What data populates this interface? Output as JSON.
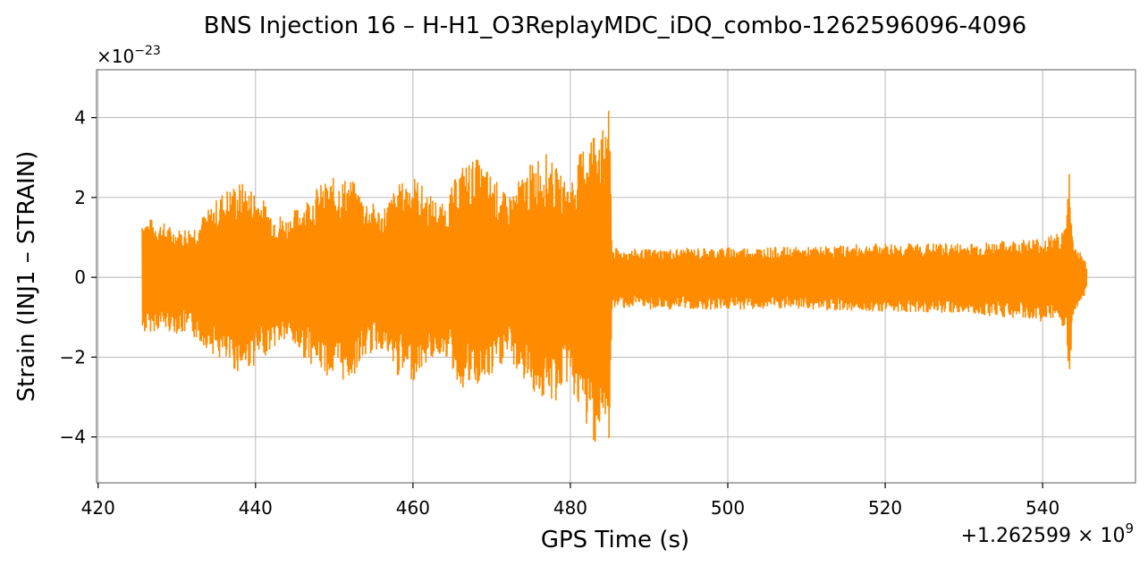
{
  "chart_data": {
    "type": "line",
    "title": "BNS Injection 16 – H-H1_O3ReplayMDC_iDQ_combo-1262596096-4096",
    "xlabel": "GPS Time (s)",
    "ylabel": "Strain (INJ1 – STRAIN)",
    "x_offset_label": "+1.262599 × 10",
    "x_offset_exp": "9",
    "y_scale_label": "×10",
    "y_scale_exp": "−23",
    "xlim": [
      419.8,
      551.8
    ],
    "ylim": [
      -5.15,
      5.2
    ],
    "xticks": [
      420,
      440,
      460,
      480,
      500,
      520,
      540
    ],
    "xtick_labels": [
      "420",
      "440",
      "460",
      "480",
      "500",
      "520",
      "540"
    ],
    "yticks": [
      -4,
      -2,
      0,
      2,
      4
    ],
    "ytick_labels": [
      "−4",
      "−2",
      "0",
      "2",
      "4"
    ],
    "grid": true,
    "line_color": "#ff8c00",
    "series": [
      {
        "envelope_x": [
          425.6,
          426.0,
          428.0,
          430.0,
          432.0,
          434.0,
          436.0,
          438.0,
          440.0,
          442.0,
          444.0,
          446.0,
          448.0,
          450.0,
          452.0,
          454.0,
          456.0,
          458.0,
          460.0,
          462.0,
          464.0,
          466.0,
          468.0,
          470.0,
          472.0,
          474.0,
          476.0,
          477.0,
          478.0,
          479.0,
          480.0,
          481.0,
          482.0,
          483.0,
          483.5,
          484.0,
          484.6,
          485.0,
          485.3,
          486.0,
          490.0,
          500.0,
          510.0,
          520.0,
          530.0,
          535.0,
          540.0,
          542.0,
          543.0,
          543.4,
          543.8,
          544.5,
          545.0,
          545.6
        ],
        "envelope_upper": [
          1.6,
          1.5,
          1.4,
          1.2,
          1.3,
          1.7,
          2.2,
          2.4,
          2.2,
          1.7,
          1.5,
          1.9,
          2.3,
          2.5,
          2.5,
          2.0,
          1.7,
          2.3,
          2.6,
          2.1,
          1.8,
          2.8,
          3.0,
          2.6,
          2.0,
          2.6,
          3.1,
          3.1,
          2.8,
          2.5,
          2.4,
          3.0,
          3.5,
          3.8,
          4.2,
          3.5,
          4.5,
          4.0,
          0.8,
          0.7,
          0.7,
          0.75,
          0.75,
          0.85,
          0.85,
          0.9,
          1.0,
          1.1,
          1.3,
          3.0,
          1.0,
          0.7,
          0.6,
          0.3
        ],
        "envelope_lower": [
          -1.5,
          -1.4,
          -1.3,
          -1.4,
          -1.5,
          -1.8,
          -2.2,
          -2.4,
          -2.2,
          -1.8,
          -1.6,
          -2.0,
          -2.3,
          -2.6,
          -2.6,
          -2.0,
          -1.8,
          -2.5,
          -2.6,
          -2.1,
          -1.9,
          -2.8,
          -2.8,
          -2.6,
          -2.0,
          -2.6,
          -3.0,
          -3.2,
          -3.2,
          -2.8,
          -2.6,
          -3.4,
          -3.8,
          -4.1,
          -4.2,
          -3.6,
          -4.6,
          -4.0,
          -0.8,
          -0.75,
          -0.8,
          -0.8,
          -0.8,
          -0.85,
          -0.9,
          -1.0,
          -1.1,
          -1.2,
          -1.4,
          -3.0,
          -1.0,
          -0.7,
          -0.6,
          -0.3
        ]
      }
    ]
  }
}
